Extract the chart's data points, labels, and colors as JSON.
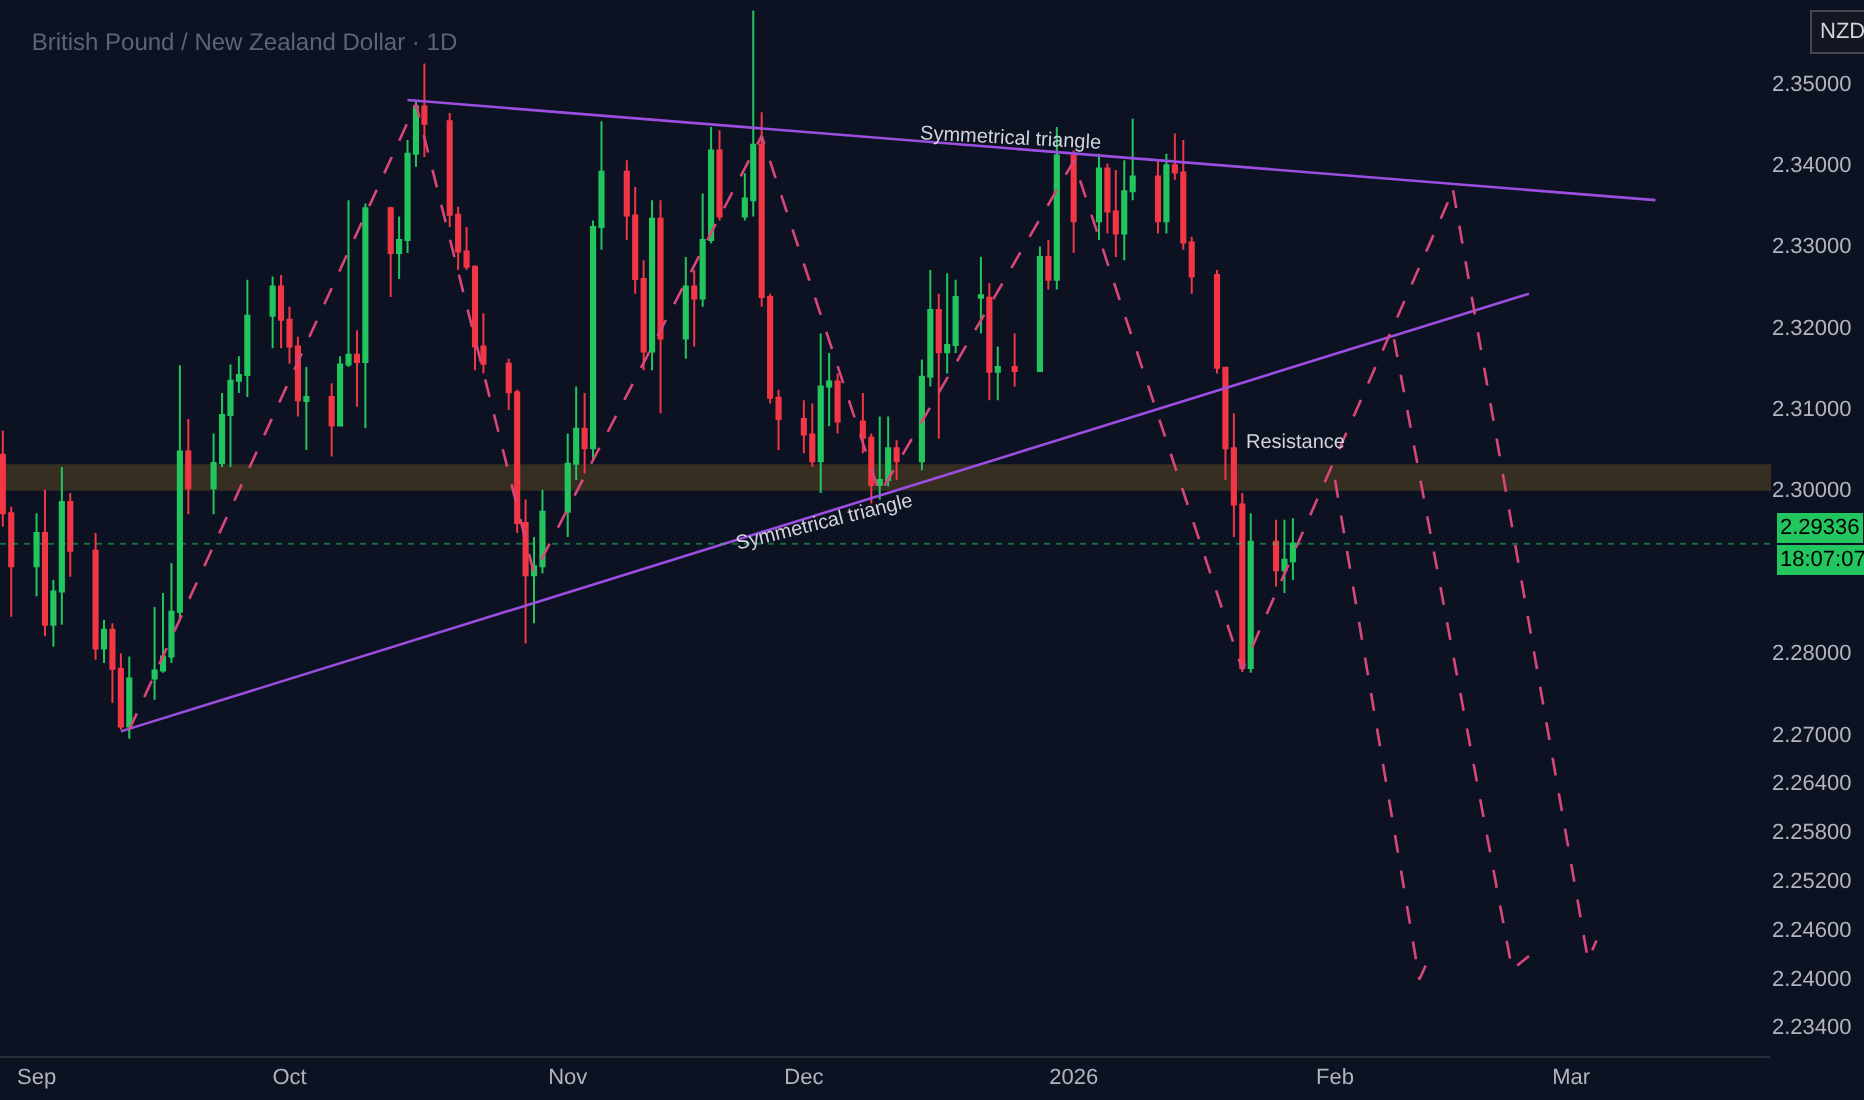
{
  "chart_data": {
    "type": "candlestick",
    "title": "British Pound / New Zealand Dollar · 1D",
    "x": [
      "2025-08-28",
      "2025-08-29",
      "2025-09-01",
      "2025-09-02",
      "2025-09-03",
      "2025-09-04",
      "2025-09-05",
      "2025-09-08",
      "2025-09-09",
      "2025-09-10",
      "2025-09-11",
      "2025-09-12",
      "2025-09-15",
      "2025-09-16",
      "2025-09-17",
      "2025-09-18",
      "2025-09-19",
      "2025-09-22",
      "2025-09-23",
      "2025-09-24",
      "2025-09-25",
      "2025-09-26",
      "2025-09-29",
      "2025-09-30",
      "2025-10-01",
      "2025-10-02",
      "2025-10-03",
      "2025-10-06",
      "2025-10-07",
      "2025-10-08",
      "2025-10-09",
      "2025-10-10",
      "2025-10-13",
      "2025-10-14",
      "2025-10-15",
      "2025-10-16",
      "2025-10-17",
      "2025-10-20",
      "2025-10-21",
      "2025-10-22",
      "2025-10-23",
      "2025-10-24",
      "2025-10-27",
      "2025-10-28",
      "2025-10-29",
      "2025-10-30",
      "2025-10-31",
      "2025-11-03",
      "2025-11-04",
      "2025-11-05",
      "2025-11-06",
      "2025-11-07",
      "2025-11-10",
      "2025-11-11",
      "2025-11-12",
      "2025-11-13",
      "2025-11-14",
      "2025-11-17",
      "2025-11-18",
      "2025-11-19",
      "2025-11-20",
      "2025-11-21",
      "2025-11-24",
      "2025-11-25",
      "2025-11-26",
      "2025-11-27",
      "2025-11-28",
      "2025-12-01",
      "2025-12-02",
      "2025-12-03",
      "2025-12-04",
      "2025-12-05",
      "2025-12-08",
      "2025-12-09",
      "2025-12-10",
      "2025-12-11",
      "2025-12-12",
      "2025-12-15",
      "2025-12-16",
      "2025-12-17",
      "2025-12-18",
      "2025-12-19",
      "2025-12-22",
      "2025-12-23",
      "2025-12-24",
      "2025-12-26",
      "2025-12-29",
      "2025-12-30",
      "2025-12-31",
      "2026-01-02",
      "2026-01-05",
      "2026-01-06",
      "2026-01-07",
      "2026-01-08",
      "2026-01-09",
      "2026-01-12",
      "2026-01-13",
      "2026-01-14",
      "2026-01-15",
      "2026-01-16",
      "2026-01-19",
      "2026-01-20",
      "2026-01-21",
      "2026-01-22",
      "2026-01-23",
      "2026-01-26",
      "2026-01-27",
      "2026-01-28"
    ],
    "ohlc": [
      [
        2.3043,
        2.3073,
        2.2955,
        2.2971
      ],
      [
        2.2971,
        2.2979,
        2.2844,
        2.2906
      ],
      [
        2.2906,
        2.2971,
        2.2869,
        2.2947
      ],
      [
        2.2947,
        2.3,
        2.282,
        2.2834
      ],
      [
        2.2834,
        2.2889,
        2.2807,
        2.2875
      ],
      [
        2.2875,
        2.3028,
        2.2834,
        2.2985
      ],
      [
        2.2985,
        2.2996,
        2.2893,
        2.2925
      ],
      [
        2.2925,
        2.2947,
        2.2791,
        2.2805
      ],
      [
        2.2805,
        2.284,
        2.2787,
        2.2828
      ],
      [
        2.2828,
        2.2836,
        2.2738,
        2.278
      ],
      [
        2.278,
        2.2799,
        2.2705,
        2.2709
      ],
      [
        2.2709,
        2.2795,
        2.2694,
        2.2768
      ],
      [
        2.2768,
        2.2856,
        2.2742,
        2.2778
      ],
      [
        2.2778,
        2.2873,
        2.2775,
        2.2795
      ],
      [
        2.2795,
        2.291,
        2.2787,
        2.285
      ],
      [
        2.285,
        2.3153,
        2.284,
        2.3047
      ],
      [
        2.3047,
        2.3087,
        2.297,
        2.3002
      ],
      [
        2.3002,
        2.3069,
        2.297,
        2.3033
      ],
      [
        2.3033,
        2.3119,
        2.3028,
        2.3092
      ],
      [
        2.3092,
        2.3154,
        2.3028,
        2.3134
      ],
      [
        2.3134,
        2.3164,
        2.3119,
        2.3141
      ],
      [
        2.3141,
        2.3258,
        2.3114,
        2.3214
      ],
      [
        2.3214,
        2.3262,
        2.3174,
        2.325
      ],
      [
        2.325,
        2.3264,
        2.3174,
        2.3209
      ],
      [
        2.3209,
        2.3225,
        2.3155,
        2.3176
      ],
      [
        2.3176,
        2.3188,
        2.309,
        2.311
      ],
      [
        2.3109,
        2.3151,
        2.3049,
        2.3114
      ],
      [
        2.3114,
        2.3131,
        2.3041,
        2.3079
      ],
      [
        2.3079,
        2.3164,
        2.3078,
        2.3154
      ],
      [
        2.3154,
        2.3356,
        2.3151,
        2.3166
      ],
      [
        2.3166,
        2.3196,
        2.3102,
        2.3157
      ],
      [
        2.3157,
        2.3352,
        2.3076,
        2.3346
      ],
      [
        2.3346,
        2.3348,
        2.3237,
        2.3291
      ],
      [
        2.3291,
        2.3336,
        2.3259,
        2.3307
      ],
      [
        2.3307,
        2.343,
        2.3291,
        2.3413
      ],
      [
        2.3413,
        2.3477,
        2.3397,
        2.3471
      ],
      [
        2.3471,
        2.3524,
        2.3409,
        2.345
      ],
      [
        2.3453,
        2.3463,
        2.3323,
        2.3338
      ],
      [
        2.3338,
        2.3348,
        2.327,
        2.3293
      ],
      [
        2.3293,
        2.3323,
        2.327,
        2.3274
      ],
      [
        2.3274,
        2.3276,
        2.3147,
        2.3176
      ],
      [
        2.3176,
        2.3217,
        2.3143,
        2.3155
      ],
      [
        2.3155,
        2.3161,
        2.3098,
        2.312
      ],
      [
        2.312,
        2.3123,
        2.2947,
        2.2959
      ],
      [
        2.2959,
        2.2988,
        2.2811,
        2.2895
      ],
      [
        2.2895,
        2.2942,
        2.2836,
        2.2906
      ],
      [
        2.2906,
        2.3,
        2.2897,
        2.2973
      ],
      [
        2.2973,
        2.3069,
        2.2942,
        2.3032
      ],
      [
        2.3032,
        2.3127,
        2.3012,
        2.3075
      ],
      [
        2.3075,
        2.3119,
        2.302,
        2.3051
      ],
      [
        2.3051,
        2.3331,
        2.3037,
        2.3323
      ],
      [
        2.3323,
        2.3453,
        2.3295,
        2.3391
      ],
      [
        2.3391,
        2.3405,
        2.3307,
        2.3337
      ],
      [
        2.3337,
        2.3372,
        2.3241,
        2.3259
      ],
      [
        2.3259,
        2.3282,
        2.3147,
        2.317
      ],
      [
        2.317,
        2.3356,
        2.3147,
        2.3333
      ],
      [
        2.3333,
        2.3356,
        2.3094,
        2.3186
      ],
      [
        2.3186,
        2.3286,
        2.3161,
        2.325
      ],
      [
        2.325,
        2.327,
        2.3176,
        2.3235
      ],
      [
        2.3235,
        2.3364,
        2.3225,
        2.3307
      ],
      [
        2.3307,
        2.3446,
        2.3303,
        2.3417
      ],
      [
        2.3417,
        2.3442,
        2.3331,
        2.3336
      ],
      [
        2.3336,
        2.3389,
        2.3331,
        2.3358
      ],
      [
        2.3356,
        2.3589,
        2.3336,
        2.3424
      ],
      [
        2.3424,
        2.3464,
        2.3225,
        2.3237
      ],
      [
        2.3237,
        2.3241,
        2.3106,
        2.3113
      ],
      [
        2.3113,
        2.3123,
        2.3049,
        2.3087
      ],
      [
        2.3087,
        2.311,
        2.3045,
        2.3068
      ],
      [
        2.3068,
        2.3106,
        2.3028,
        2.3035
      ],
      [
        2.3035,
        2.3192,
        2.2996,
        2.3127
      ],
      [
        2.3127,
        2.3168,
        2.3078,
        2.3133
      ],
      [
        2.3133,
        2.3143,
        2.3069,
        2.3084
      ],
      [
        2.3084,
        2.3119,
        2.3045,
        2.3064
      ],
      [
        2.3064,
        2.3069,
        2.2983,
        2.3006
      ],
      [
        2.3006,
        2.309,
        2.2988,
        2.3012
      ],
      [
        2.3012,
        2.309,
        2.3004,
        2.3051
      ],
      [
        2.3051,
        2.3061,
        2.3012,
        2.3035
      ],
      [
        2.3035,
        2.316,
        2.3024,
        2.3139
      ],
      [
        2.3139,
        2.327,
        2.3127,
        2.3221
      ],
      [
        2.3221,
        2.3241,
        2.3063,
        2.3169
      ],
      [
        2.3169,
        2.3266,
        2.3143,
        2.3178
      ],
      [
        2.3178,
        2.3258,
        2.3168,
        2.3237
      ],
      [
        2.3236,
        2.3286,
        2.3192,
        2.3239
      ],
      [
        2.3236,
        2.3254,
        2.311,
        2.3145
      ],
      [
        2.3145,
        2.3176,
        2.311,
        2.3151
      ],
      [
        2.3151,
        2.3192,
        2.3127,
        2.3146
      ],
      [
        2.3146,
        2.3299,
        2.3145,
        2.3286
      ],
      [
        2.3286,
        2.3307,
        2.3246,
        2.3258
      ],
      [
        2.3258,
        2.3446,
        2.3246,
        2.3411
      ],
      [
        2.3411,
        2.3417,
        2.3291,
        2.333
      ],
      [
        2.333,
        2.3413,
        2.3307,
        2.3395
      ],
      [
        2.3395,
        2.3401,
        2.3315,
        2.3342
      ],
      [
        2.3342,
        2.3393,
        2.3286,
        2.3315
      ],
      [
        2.3315,
        2.3405,
        2.3282,
        2.3367
      ],
      [
        2.3367,
        2.3456,
        2.3356,
        2.3385
      ],
      [
        2.3385,
        2.3405,
        2.3315,
        2.333
      ],
      [
        2.333,
        2.3413,
        2.3315,
        2.3399
      ],
      [
        2.3399,
        2.3438,
        2.3381,
        2.339
      ],
      [
        2.339,
        2.343,
        2.3295,
        2.3304
      ],
      [
        2.3304,
        2.3311,
        2.3241,
        2.3262
      ],
      [
        2.3264,
        2.327,
        2.3143,
        2.315
      ],
      [
        2.315,
        2.3151,
        2.3012,
        2.3051
      ],
      [
        2.3051,
        2.3094,
        2.2942,
        2.2982
      ],
      [
        2.2982,
        2.2996,
        2.2776,
        2.2781
      ],
      [
        2.2781,
        2.2971,
        2.2775,
        2.2936
      ],
      [
        2.2936,
        2.2963,
        2.2881,
        2.2901
      ],
      [
        2.2901,
        2.2963,
        2.2873,
        2.2914
      ],
      [
        2.2912,
        2.2965,
        2.2889,
        2.2934
      ]
    ],
    "colors": [
      "#f23645",
      "#f23645",
      "#22c55e",
      "#f23645",
      "#22c55e",
      "#22c55e",
      "#f23645",
      "#f23645",
      "#22c55e",
      "#f23645",
      "#f23645",
      "#22c55e",
      "#22c55e",
      "#22c55e",
      "#22c55e",
      "#22c55e",
      "#f23645",
      "#22c55e",
      "#22c55e",
      "#22c55e",
      "#22c55e",
      "#22c55e",
      "#22c55e",
      "#f23645",
      "#f23645",
      "#f23645",
      "#22c55e",
      "#f23645",
      "#22c55e",
      "#22c55e",
      "#f23645",
      "#22c55e",
      "#f23645",
      "#22c55e",
      "#22c55e",
      "#22c55e",
      "#f23645",
      "#f23645",
      "#f23645",
      "#f23645",
      "#f23645",
      "#f23645",
      "#f23645",
      "#f23645",
      "#f23645",
      "#22c55e",
      "#22c55e",
      "#22c55e",
      "#22c55e",
      "#f23645",
      "#22c55e",
      "#22c55e",
      "#f23645",
      "#f23645",
      "#f23645",
      "#22c55e",
      "#f23645",
      "#22c55e",
      "#f23645",
      "#22c55e",
      "#22c55e",
      "#f23645",
      "#22c55e",
      "#22c55e",
      "#f23645",
      "#f23645",
      "#f23645",
      "#f23645",
      "#f23645",
      "#22c55e",
      "#22c55e",
      "#f23645",
      "#f23645",
      "#f23645",
      "#22c55e",
      "#22c55e",
      "#f23645",
      "#22c55e",
      "#22c55e",
      "#f23645",
      "#22c55e",
      "#22c55e",
      "#22c55e",
      "#f23645",
      "#22c55e",
      "#f23645",
      "#22c55e",
      "#f23645",
      "#22c55e",
      "#f23645",
      "#22c55e",
      "#f23645",
      "#f23645",
      "#22c55e",
      "#22c55e",
      "#f23645",
      "#22c55e",
      "#f23645",
      "#f23645",
      "#f23645",
      "#f23645",
      "#f23645",
      "#f23645",
      "#f23645",
      "#22c55e",
      "#f23645",
      "#22c55e",
      "#22c55e"
    ],
    "series": [
      {
        "type": "line",
        "color": "#9c4ee0",
        "line_style": "solid",
        "x": [
          "2025-10-15",
          "2026-03-12"
        ],
        "values": [
          2.3479,
          2.3356
        ]
      },
      {
        "type": "line",
        "color": "#9c4ee0",
        "line_style": "solid",
        "x": [
          "2025-09-11",
          "2026-02-25"
        ],
        "values": [
          2.2703,
          2.3241
        ]
      },
      {
        "type": "line",
        "color": "#d9467a",
        "line_style": "dashed",
        "x": [
          "2025-09-12",
          "2025-10-16",
          "2025-10-30",
          "2025-11-26",
          "2025-12-10",
          "2026-01-02",
          "2026-01-22",
          "2026-02-16"
        ],
        "values": [
          2.2705,
          2.3474,
          2.2897,
          2.3435,
          2.2995,
          2.3404,
          2.2779,
          2.3368
        ]
      },
      {
        "type": "line",
        "color": "#d9467a",
        "line_style": "dashed",
        "x": [
          "2026-02-02",
          "2026-02-12",
          "2026-02-13"
        ],
        "values": [
          2.3012,
          2.2398,
          2.2421
        ]
      },
      {
        "type": "line",
        "color": "#d9467a",
        "line_style": "dashed",
        "x": [
          "2026-02-09",
          "2026-02-23",
          "2026-02-25"
        ],
        "values": [
          2.3185,
          2.241,
          2.2427
        ]
      },
      {
        "type": "line",
        "color": "#d9467a",
        "line_style": "dashed",
        "x": [
          "2026-02-16",
          "2026-03-04",
          "2026-03-05"
        ],
        "values": [
          2.3368,
          2.2422,
          2.2446
        ]
      }
    ],
    "xlim": [
      "2025-08-27T16:00",
      "2026-03-25T14:00"
    ],
    "xticks": [
      {
        "value": "2025-09-01",
        "label": "Sep"
      },
      {
        "value": "2025-10-01",
        "label": "Oct"
      },
      {
        "value": "2025-11-03",
        "label": "Nov"
      },
      {
        "value": "2025-12-01",
        "label": "Dec"
      },
      {
        "value": "2026-01-02",
        "label": "2026"
      },
      {
        "value": "2026-02-02",
        "label": "Feb"
      },
      {
        "value": "2026-03-02",
        "label": "Mar"
      }
    ],
    "ylim": [
      2.2304,
      2.3602
    ],
    "yticks": [
      {
        "value": 2.35,
        "label": "2.35000"
      },
      {
        "value": 2.34,
        "label": "2.34000"
      },
      {
        "value": 2.33,
        "label": "2.33000"
      },
      {
        "value": 2.32,
        "label": "2.32000"
      },
      {
        "value": 2.31,
        "label": "2.31000"
      },
      {
        "value": 2.3,
        "label": "2.30000"
      },
      {
        "value": 2.28,
        "label": "2.28000"
      },
      {
        "value": 2.27,
        "label": "2.27000"
      },
      {
        "value": 2.264,
        "label": "2.26400"
      },
      {
        "value": 2.258,
        "label": "2.25800"
      },
      {
        "value": 2.252,
        "label": "2.25200"
      },
      {
        "value": 2.246,
        "label": "2.24600"
      },
      {
        "value": 2.24,
        "label": "2.24000"
      },
      {
        "value": 2.234,
        "label": "2.23400"
      }
    ],
    "grid": false,
    "ref_lines": [
      {
        "axis": "y",
        "value": 2.29336,
        "label": "2.29336",
        "color": "#22c55e",
        "line_style": "dotted"
      }
    ],
    "bands": [
      {
        "axis": "y",
        "from": 2.3,
        "to": 2.303,
        "color": "#5a4622",
        "label": "Resistance"
      }
    ],
    "annotations": [
      "Symmetrical triangle",
      "Symmetrical triangle",
      "NZD",
      "18:07:07"
    ]
  }
}
